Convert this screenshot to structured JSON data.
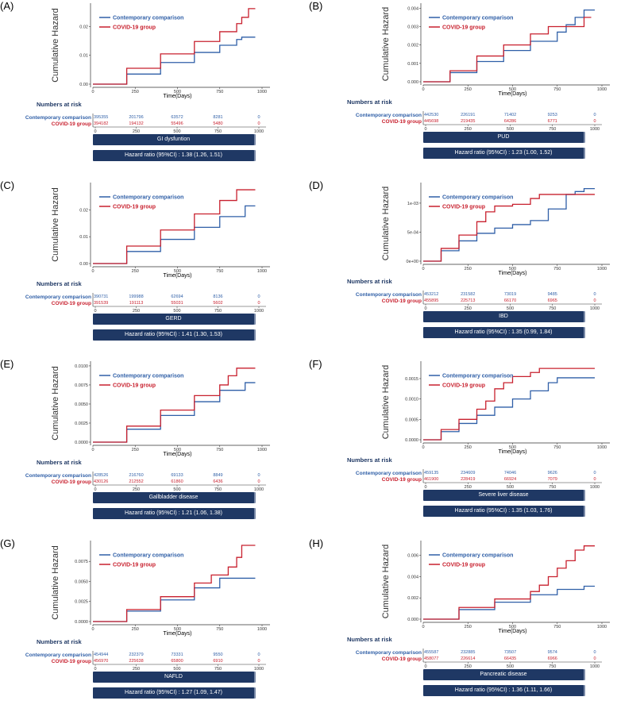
{
  "colors": {
    "comparison": "#2f5fa7",
    "covid": "#c8202e",
    "bar": "#1f3864",
    "risk_title": "#1f3864"
  },
  "common": {
    "ylabel": "Cumulative Hazard",
    "xlabel": "Time(Days)",
    "legend_comparison": "Contemporary comparison",
    "legend_covid": "COVID-19 group",
    "risk_title": "Numbers at risk",
    "risk_row_comparison": "Contemporary comparison",
    "risk_row_covid": "COVID-19 group"
  },
  "chart_data": [
    {
      "type": "line",
      "label": "(A)",
      "title": "GI dysfuntion",
      "hazard_ratio": "Hazard ratio (95%CI) : 1.38 (1.26, 1.51)",
      "xlabel": "Time(Days)",
      "ylabel": "Cumulative Hazard",
      "xlim": [
        0,
        1000
      ],
      "ylim": [
        0,
        0.027
      ],
      "x_ticks": [
        "0",
        "250",
        "500",
        "750",
        "1000"
      ],
      "y_ticks": [
        {
          "v": 0,
          "t": "0.00"
        },
        {
          "v": 0.01,
          "t": "0.01"
        },
        {
          "v": 0.02,
          "t": "0.02"
        }
      ],
      "series": [
        {
          "name": "Contemporary comparison",
          "x": [
            0,
            200,
            400,
            600,
            750,
            850,
            880,
            960
          ],
          "y": [
            0,
            0.0035,
            0.0075,
            0.011,
            0.0135,
            0.0155,
            0.0163,
            0.0163
          ]
        },
        {
          "name": "COVID-19 group",
          "x": [
            0,
            200,
            400,
            600,
            750,
            850,
            880,
            920,
            960
          ],
          "y": [
            0,
            0.0055,
            0.0105,
            0.0148,
            0.0182,
            0.021,
            0.0232,
            0.0262,
            0.0262
          ]
        }
      ],
      "risk_ticks": [
        "0",
        "250",
        "500",
        "750",
        "1000"
      ],
      "risk": {
        "comparison": [
          "395355",
          "201796",
          "63572",
          "8281",
          "0"
        ],
        "covid": [
          "394182",
          "194132",
          "55496",
          "5480",
          "0"
        ]
      }
    },
    {
      "type": "line",
      "label": "(B)",
      "title": "PUD",
      "hazard_ratio": "Hazard ratio (95%CI) : 1.23 (1.00, 1.52)",
      "xlabel": "Time(Days)",
      "ylabel": "Cumulative Hazard",
      "xlim": [
        0,
        1000
      ],
      "ylim": [
        0,
        0.0041
      ],
      "x_ticks": [
        "0",
        "250",
        "500",
        "750",
        "1000"
      ],
      "y_ticks": [
        {
          "v": 0,
          "t": "0.000"
        },
        {
          "v": 0.001,
          "t": "0.001"
        },
        {
          "v": 0.002,
          "t": "0.002"
        },
        {
          "v": 0.003,
          "t": "0.003"
        },
        {
          "v": 0.004,
          "t": "0.004"
        }
      ],
      "series": [
        {
          "name": "Contemporary comparison",
          "x": [
            0,
            150,
            300,
            450,
            600,
            750,
            800,
            850,
            900,
            960
          ],
          "y": [
            0,
            0.0005,
            0.0011,
            0.0017,
            0.0022,
            0.0027,
            0.0031,
            0.0035,
            0.0039,
            0.0039
          ]
        },
        {
          "name": "COVID-19 group",
          "x": [
            0,
            150,
            300,
            450,
            600,
            700,
            800,
            900,
            940
          ],
          "y": [
            0,
            0.0006,
            0.0014,
            0.002,
            0.0026,
            0.003,
            0.003,
            0.0035,
            0.0035
          ]
        }
      ],
      "risk_ticks": [
        "0",
        "250",
        "500",
        "750",
        "1000"
      ],
      "risk": {
        "comparison": [
          "442530",
          "226191",
          "71402",
          "9253",
          "0"
        ],
        "covid": [
          "445698",
          "219435",
          "64286",
          "6771",
          "0"
        ]
      }
    },
    {
      "type": "line",
      "label": "(C)",
      "title": "GERD",
      "hazard_ratio": "Hazard ratio (95%CI) : 1.41 (1.30, 1.53)",
      "xlabel": "Time(Days)",
      "ylabel": "Cumulative Hazard",
      "xlim": [
        0,
        1000
      ],
      "ylim": [
        0,
        0.029
      ],
      "x_ticks": [
        "0",
        "250",
        "500",
        "750",
        "1000"
      ],
      "y_ticks": [
        {
          "v": 0,
          "t": "0.00"
        },
        {
          "v": 0.01,
          "t": "0.01"
        },
        {
          "v": 0.02,
          "t": "0.02"
        }
      ],
      "series": [
        {
          "name": "Contemporary comparison",
          "x": [
            0,
            200,
            400,
            600,
            750,
            900,
            960
          ],
          "y": [
            0,
            0.0045,
            0.009,
            0.0135,
            0.0175,
            0.0215,
            0.0215
          ]
        },
        {
          "name": "COVID-19 group",
          "x": [
            0,
            200,
            400,
            600,
            750,
            850,
            960
          ],
          "y": [
            0,
            0.0065,
            0.0125,
            0.0185,
            0.0235,
            0.0275,
            0.0275
          ]
        }
      ],
      "risk_ticks": [
        "0",
        "250",
        "500",
        "750",
        "1000"
      ],
      "risk": {
        "comparison": [
          "390731",
          "199988",
          "62694",
          "8136",
          "0"
        ],
        "covid": [
          "391539",
          "191113",
          "55031",
          "5602",
          "0"
        ]
      }
    },
    {
      "type": "line",
      "label": "(D)",
      "title": "IBD",
      "hazard_ratio": "Hazard ratio (95%CI) : 1.35 (0.99, 1.84)",
      "xlabel": "Time(Days)",
      "ylabel": "Cumulative Hazard",
      "xlim": [
        0,
        1000
      ],
      "ylim": [
        0,
        0.0013
      ],
      "x_ticks": [
        "0",
        "250",
        "500",
        "750",
        "1000"
      ],
      "y_ticks": [
        {
          "v": 0,
          "t": "0e+00"
        },
        {
          "v": 0.0005,
          "t": "5e-04"
        },
        {
          "v": 0.001,
          "t": "1e-03"
        }
      ],
      "series": [
        {
          "name": "Contemporary comparison",
          "x": [
            0,
            100,
            200,
            300,
            400,
            500,
            600,
            700,
            800,
            850,
            900,
            960
          ],
          "y": [
            0,
            0.00018,
            0.00035,
            0.00048,
            0.00057,
            0.00063,
            0.0007,
            0.0009,
            0.00115,
            0.0012,
            0.00125,
            0.00125
          ]
        },
        {
          "name": "COVID-19 group",
          "x": [
            0,
            100,
            200,
            300,
            350,
            400,
            500,
            600,
            650,
            750,
            850,
            960
          ],
          "y": [
            0,
            0.00022,
            0.00045,
            0.00068,
            0.00085,
            0.00095,
            0.00098,
            0.00108,
            0.00115,
            0.00115,
            0.00115,
            0.00115
          ]
        }
      ],
      "risk_ticks": [
        "0",
        "250",
        "500",
        "750",
        "1000"
      ],
      "risk": {
        "comparison": [
          "453212",
          "231582",
          "73019",
          "9485",
          "0"
        ],
        "covid": [
          "455895",
          "225713",
          "66170",
          "6965",
          "0"
        ]
      }
    },
    {
      "type": "line",
      "label": "(E)",
      "title": "Gallbladder disease",
      "hazard_ratio": "Hazard ratio (95%CI) : 1.21 (1.06, 1.38)",
      "xlabel": "Time(Days)",
      "ylabel": "Cumulative Hazard",
      "xlim": [
        0,
        1000
      ],
      "ylim": [
        0,
        0.0102
      ],
      "x_ticks": [
        "0",
        "250",
        "500",
        "750",
        "1000"
      ],
      "y_ticks": [
        {
          "v": 0,
          "t": "0.0000"
        },
        {
          "v": 0.0025,
          "t": "0.0025"
        },
        {
          "v": 0.005,
          "t": "0.0050"
        },
        {
          "v": 0.0075,
          "t": "0.0075"
        },
        {
          "v": 0.01,
          "t": "0.0100"
        }
      ],
      "series": [
        {
          "name": "Contemporary comparison",
          "x": [
            0,
            200,
            400,
            600,
            750,
            900,
            960
          ],
          "y": [
            0,
            0.0017,
            0.0035,
            0.0053,
            0.0068,
            0.0078,
            0.0078
          ]
        },
        {
          "name": "COVID-19 group",
          "x": [
            0,
            200,
            400,
            600,
            750,
            800,
            850,
            960
          ],
          "y": [
            0,
            0.0021,
            0.0042,
            0.0061,
            0.0075,
            0.0087,
            0.0097,
            0.0097
          ]
        }
      ],
      "risk_ticks": [
        "0",
        "250",
        "500",
        "750",
        "1000"
      ],
      "risk": {
        "comparison": [
          "428526",
          "216760",
          "69133",
          "8849",
          "0"
        ],
        "covid": [
          "430126",
          "212552",
          "61860",
          "6436",
          "0"
        ]
      }
    },
    {
      "type": "line",
      "label": "(F)",
      "title": "Severe liver disease",
      "hazard_ratio": "Hazard ratio (95%CI) : 1.35 (1.03, 1.76)",
      "xlabel": "Time(Days)",
      "ylabel": "Cumulative Hazard",
      "xlim": [
        0,
        1000
      ],
      "ylim": [
        0,
        0.00185
      ],
      "x_ticks": [
        "0",
        "250",
        "500",
        "750",
        "1000"
      ],
      "y_ticks": [
        {
          "v": 0,
          "t": "0.0000"
        },
        {
          "v": 0.0005,
          "t": "0.0005"
        },
        {
          "v": 0.001,
          "t": "0.0010"
        },
        {
          "v": 0.0015,
          "t": "0.0015"
        }
      ],
      "series": [
        {
          "name": "Contemporary comparison",
          "x": [
            0,
            100,
            200,
            300,
            400,
            500,
            600,
            700,
            750,
            960
          ],
          "y": [
            0,
            0.0002,
            0.0004,
            0.0006,
            0.0008,
            0.001,
            0.0012,
            0.0014,
            0.00152,
            0.00152
          ]
        },
        {
          "name": "COVID-19 group",
          "x": [
            0,
            100,
            200,
            300,
            350,
            400,
            450,
            500,
            600,
            650,
            960
          ],
          "y": [
            0,
            0.00025,
            0.0005,
            0.00075,
            0.00095,
            0.00125,
            0.0014,
            0.00155,
            0.00165,
            0.00175,
            0.00175
          ]
        }
      ],
      "risk_ticks": [
        "0",
        "250",
        "500",
        "750",
        "1000"
      ],
      "risk": {
        "comparison": [
          "459135",
          "234609",
          "74046",
          "9626",
          "0"
        ],
        "covid": [
          "461900",
          "228419",
          "66924",
          "7079",
          "0"
        ]
      }
    },
    {
      "type": "line",
      "label": "(G)",
      "title": "NAFLD",
      "hazard_ratio": "Hazard ratio (95%CI) : 1.27 (1.09, 1.47)",
      "xlabel": "Time(Days)",
      "ylabel": "Cumulative Hazard",
      "xlim": [
        0,
        1000
      ],
      "ylim": [
        0,
        0.0097
      ],
      "x_ticks": [
        "0",
        "250",
        "500",
        "750",
        "1000"
      ],
      "y_ticks": [
        {
          "v": 0,
          "t": "0.0000"
        },
        {
          "v": 0.0025,
          "t": "0.0025"
        },
        {
          "v": 0.005,
          "t": "0.0050"
        },
        {
          "v": 0.0075,
          "t": "0.0075"
        }
      ],
      "series": [
        {
          "name": "Contemporary comparison",
          "x": [
            0,
            200,
            400,
            600,
            750,
            960
          ],
          "y": [
            0,
            0.0013,
            0.0027,
            0.0042,
            0.0054,
            0.0054
          ]
        },
        {
          "name": "COVID-19 group",
          "x": [
            0,
            200,
            400,
            600,
            700,
            800,
            850,
            880,
            960
          ],
          "y": [
            0,
            0.0015,
            0.0031,
            0.0048,
            0.0058,
            0.0068,
            0.008,
            0.0095,
            0.0095
          ]
        }
      ],
      "risk_ticks": [
        "0",
        "250",
        "500",
        "750",
        "1000"
      ],
      "risk": {
        "comparison": [
          "454944",
          "232379",
          "73331",
          "9550",
          "0"
        ],
        "covid": [
          "456970",
          "225638",
          "65800",
          "6910",
          "0"
        ]
      }
    },
    {
      "type": "line",
      "label": "(H)",
      "title": "Pancreatic disease",
      "hazard_ratio": "Hazard ratio (95%CI) : 1.36 (1.11, 1.66)",
      "xlabel": "Time(Days)",
      "ylabel": "Cumulative Hazard",
      "xlim": [
        0,
        1000
      ],
      "ylim": [
        0,
        0.0071
      ],
      "x_ticks": [
        "0",
        "250",
        "500",
        "750",
        "1000"
      ],
      "y_ticks": [
        {
          "v": 0,
          "t": "0.000"
        },
        {
          "v": 0.002,
          "t": "0.002"
        },
        {
          "v": 0.004,
          "t": "0.004"
        },
        {
          "v": 0.006,
          "t": "0.006"
        }
      ],
      "series": [
        {
          "name": "Contemporary comparison",
          "x": [
            0,
            200,
            400,
            600,
            750,
            900,
            960
          ],
          "y": [
            0,
            0.0009,
            0.0016,
            0.0023,
            0.0028,
            0.0031,
            0.0031
          ]
        },
        {
          "name": "COVID-19 group",
          "x": [
            0,
            200,
            400,
            600,
            650,
            700,
            750,
            800,
            850,
            900,
            960
          ],
          "y": [
            0,
            0.0011,
            0.0019,
            0.0026,
            0.0032,
            0.004,
            0.0048,
            0.0055,
            0.0065,
            0.0069,
            0.0069
          ]
        }
      ],
      "risk_ticks": [
        "0",
        "250",
        "500",
        "750",
        "1000"
      ],
      "risk": {
        "comparison": [
          "455587",
          "232885",
          "73507",
          "9574",
          "0"
        ],
        "covid": [
          "458077",
          "226614",
          "66435",
          "6966",
          "0"
        ]
      }
    }
  ]
}
